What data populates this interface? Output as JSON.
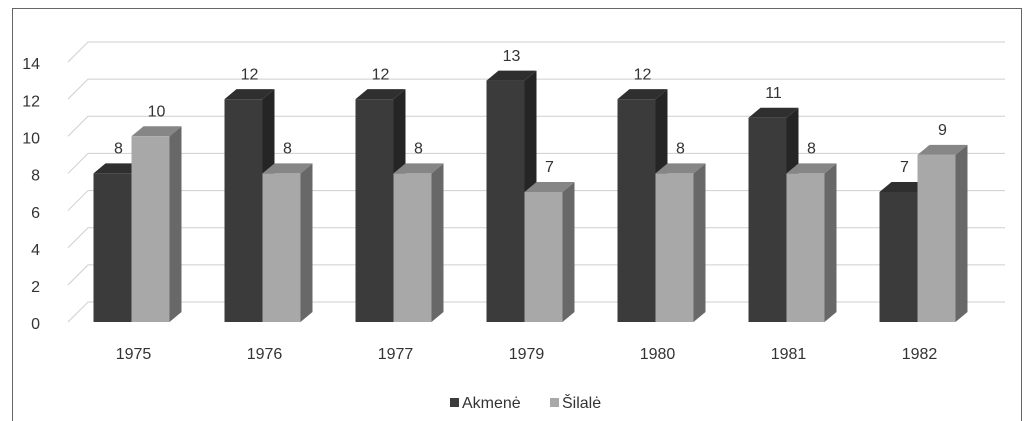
{
  "chart_data": {
    "type": "bar3d",
    "categories": [
      "1975",
      "1976",
      "1977",
      "1979",
      "1980",
      "1981",
      "1982"
    ],
    "series": [
      {
        "name": "Akmenė",
        "color": "#3b3b3b",
        "values": [
          8,
          12,
          12,
          13,
          12,
          11,
          7
        ]
      },
      {
        "name": "Šilalė",
        "color": "#a8a8a8",
        "values": [
          10,
          8,
          8,
          7,
          8,
          8,
          9
        ]
      }
    ],
    "ylim": [
      0,
      14
    ],
    "yticks": [
      0,
      2,
      4,
      6,
      8,
      10,
      12,
      14
    ],
    "grid": true,
    "legend": "bottom"
  }
}
